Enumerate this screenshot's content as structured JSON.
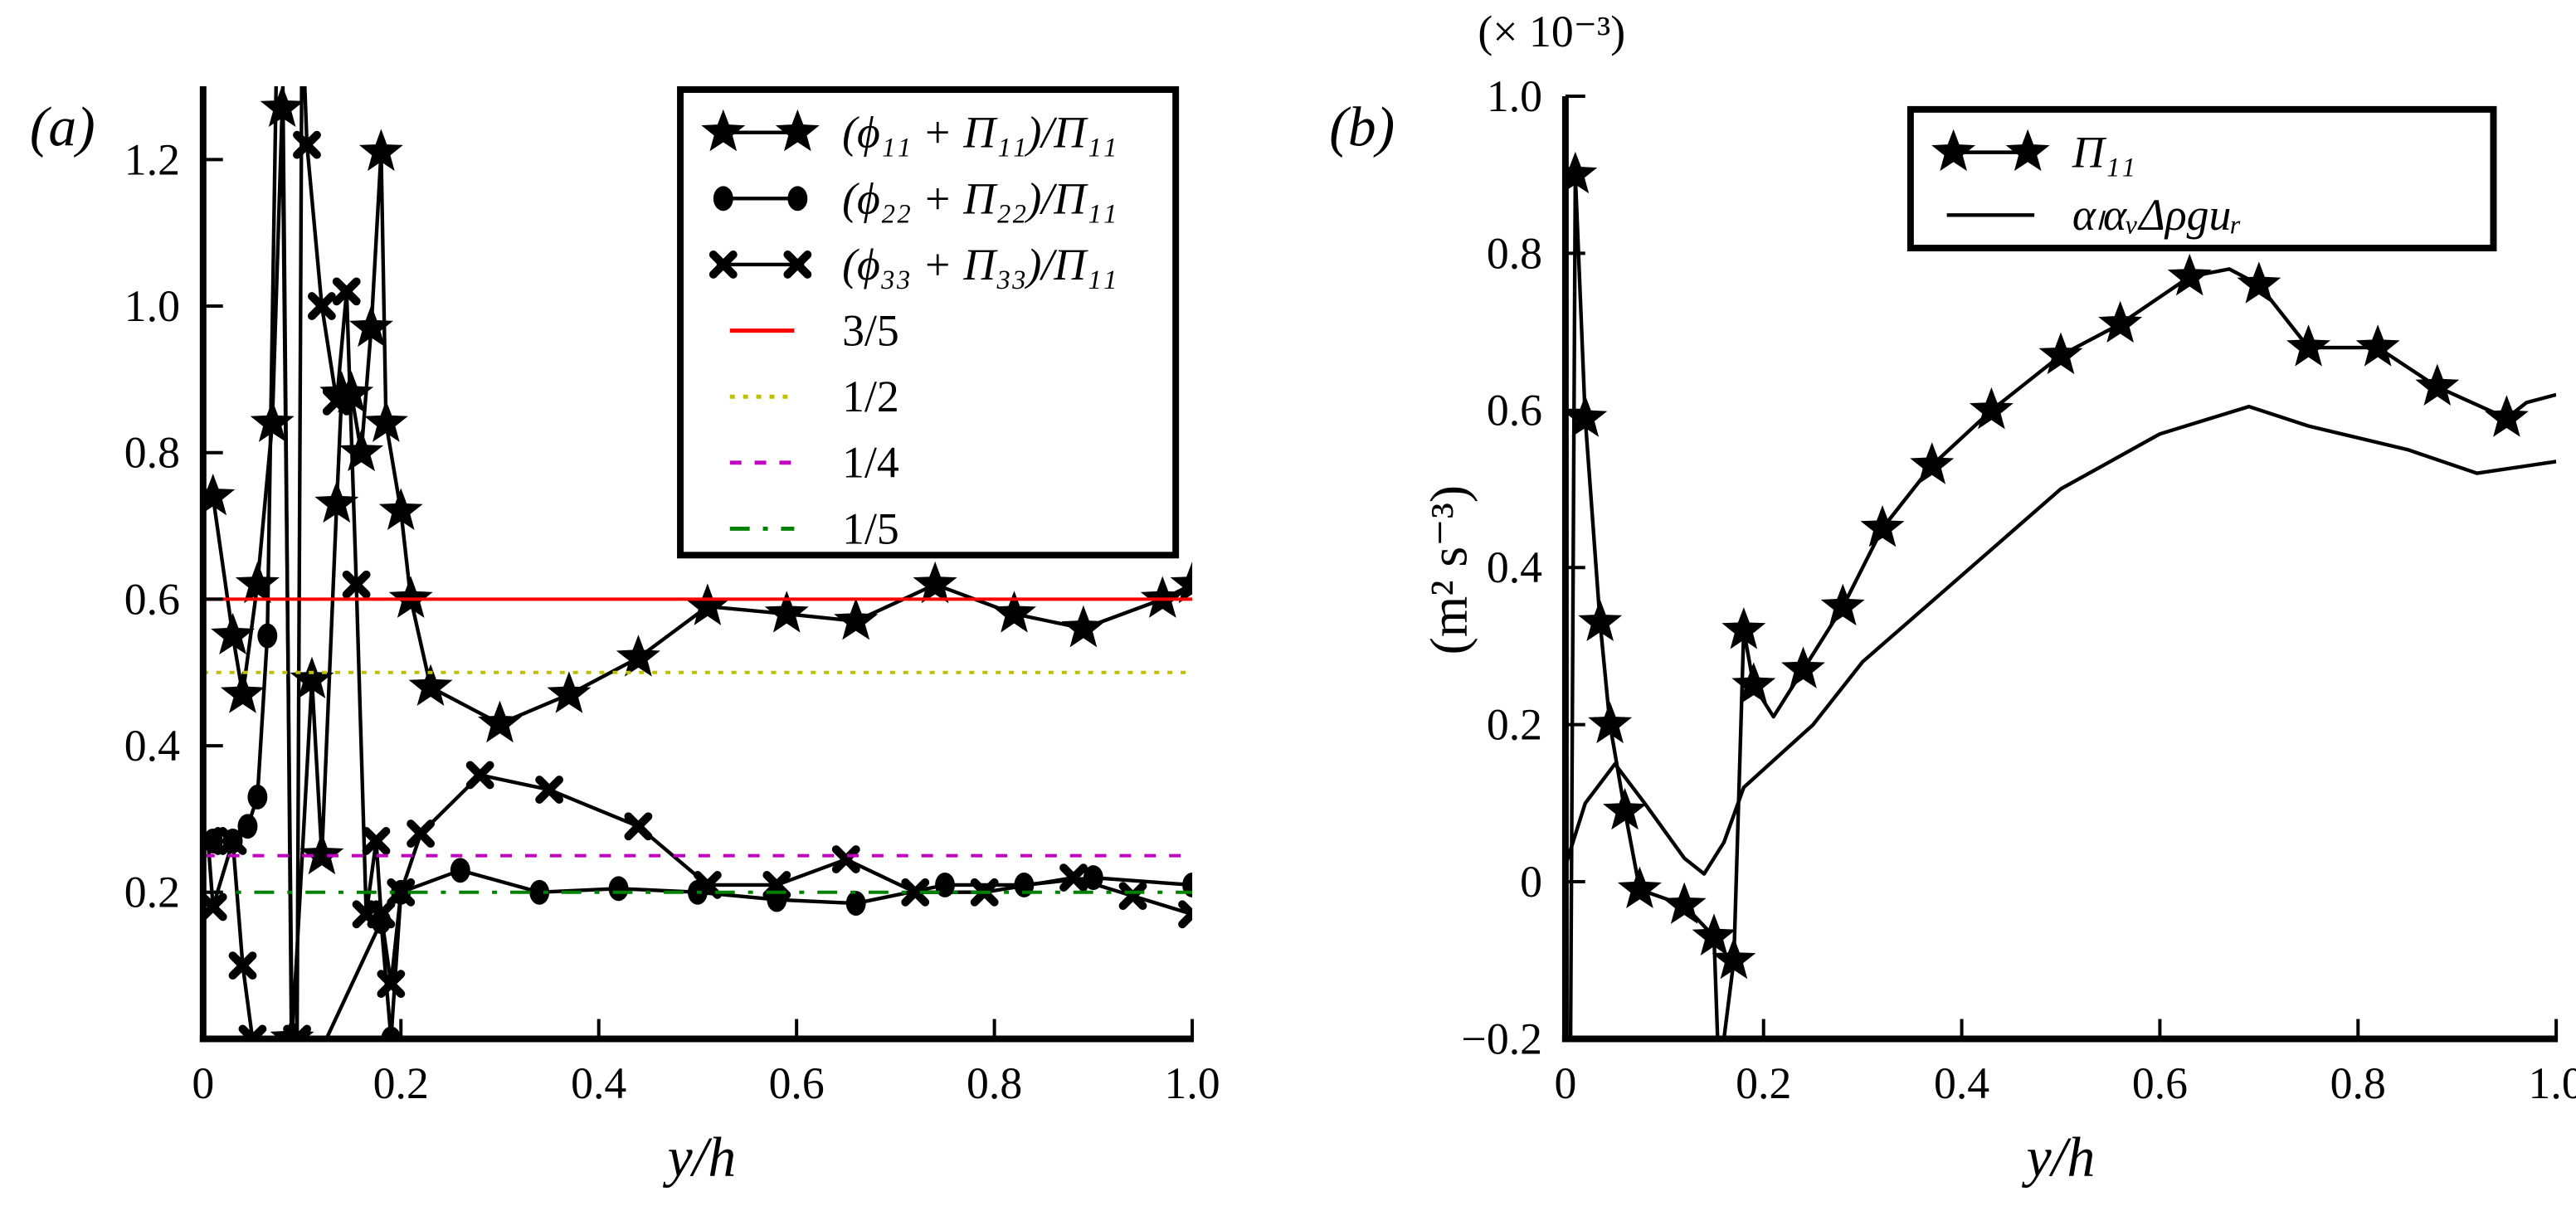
{
  "chart_data": [
    {
      "type": "line",
      "panel_label": "(a)",
      "xlabel": "y/h",
      "ylabel": "",
      "xlim": [
        0,
        1.0
      ],
      "ylim": [
        0,
        1.3
      ],
      "xticks": [
        "0",
        "0.2",
        "0.4",
        "0.6",
        "0.8",
        "1.0"
      ],
      "yticks": [
        "0.2",
        "0.4",
        "0.6",
        "0.8",
        "1.0",
        "1.2"
      ],
      "ytick_values": [
        0.2,
        0.4,
        0.6,
        0.8,
        1.0,
        1.2
      ],
      "xtick_values": [
        0,
        0.2,
        0.4,
        0.6,
        0.8,
        1.0
      ],
      "grid": false,
      "legend_position": "top-right",
      "series": [
        {
          "name": "(ϕ₁₁ + Π₁₁)/Π₁₁",
          "marker": "star",
          "color": "#000000",
          "x": [
            0.01,
            0.03,
            0.04,
            0.055,
            0.07,
            0.08,
            0.09,
            0.11,
            0.12,
            0.135,
            0.14,
            0.15,
            0.16,
            0.17,
            0.18,
            0.185,
            0.2,
            0.21,
            0.23,
            0.3,
            0.37,
            0.44,
            0.51,
            0.59,
            0.66,
            0.74,
            0.82,
            0.89,
            0.97,
            1.0
          ],
          "y": [
            0.74,
            0.55,
            0.47,
            0.62,
            0.84,
            1.27,
            0.0,
            0.49,
            0.25,
            0.73,
            0.88,
            0.88,
            0.8,
            0.97,
            1.21,
            0.84,
            0.72,
            0.6,
            0.48,
            0.43,
            0.47,
            0.52,
            0.59,
            0.58,
            0.57,
            0.62,
            0.58,
            0.56,
            0.6,
            0.62
          ]
        },
        {
          "name": "(ϕ₂₂ + Π₂₂)/Π₁₁",
          "marker": "circle",
          "color": "#000000",
          "x": [
            0.01,
            0.03,
            0.045,
            0.055,
            0.065,
            0.075,
            0.08,
            0.09,
            0.18,
            0.19,
            0.2,
            0.26,
            0.34,
            0.42,
            0.5,
            0.58,
            0.66,
            0.75,
            0.83,
            0.9,
            1.0
          ],
          "y": [
            0.27,
            0.27,
            0.29,
            0.33,
            0.55,
            1.4,
            1.4,
            -0.1,
            0.16,
            0.0,
            0.2,
            0.23,
            0.2,
            0.205,
            0.2,
            0.19,
            0.185,
            0.21,
            0.21,
            0.22,
            0.21
          ]
        },
        {
          "name": "(ϕ₃₃ + Π₃₃)/Π₁₁",
          "marker": "cross",
          "color": "#000000",
          "x": [
            0.005,
            0.01,
            0.03,
            0.04,
            0.05,
            0.06,
            0.095,
            0.1,
            0.105,
            0.12,
            0.135,
            0.145,
            0.155,
            0.165,
            0.175,
            0.18,
            0.19,
            0.2,
            0.22,
            0.28,
            0.35,
            0.44,
            0.51,
            0.58,
            0.65,
            0.72,
            0.79,
            0.88,
            0.94,
            1.0
          ],
          "y": [
            0.27,
            0.18,
            0.27,
            0.1,
            0.0,
            -0.1,
            0.0,
            1.4,
            1.22,
            1.0,
            0.87,
            1.02,
            0.62,
            0.17,
            0.27,
            0.17,
            0.075,
            0.2,
            0.28,
            0.36,
            0.34,
            0.29,
            0.21,
            0.21,
            0.245,
            0.2,
            0.2,
            0.22,
            0.195,
            0.17
          ]
        },
        {
          "name": "3/5",
          "value": 0.6,
          "style": "solid",
          "color": "#ff0000"
        },
        {
          "name": "1/2",
          "value": 0.5,
          "style": "dotted",
          "color": "#bfbf00"
        },
        {
          "name": "1/4",
          "value": 0.25,
          "style": "dashed",
          "color": "#bf00bf"
        },
        {
          "name": "1/5",
          "value": 0.2,
          "style": "dashdot",
          "color": "#008000"
        }
      ]
    },
    {
      "type": "line",
      "panel_label": "(b)",
      "xlabel": "y/h",
      "ylabel": "(m² s⁻³)",
      "multiplier": "(× 10⁻³)",
      "xlim": [
        0,
        1.0
      ],
      "ylim": [
        -0.2,
        1.0
      ],
      "xticks": [
        "0",
        "0.2",
        "0.4",
        "0.6",
        "0.8",
        "1.0"
      ],
      "xtick_values": [
        0,
        0.2,
        0.4,
        0.6,
        0.8,
        1.0
      ],
      "yticks": [
        "−0.2",
        "0",
        "0.2",
        "0.4",
        "0.6",
        "0.8",
        "1.0"
      ],
      "ytick_values": [
        -0.2,
        0,
        0.2,
        0.4,
        0.6,
        0.8,
        1.0
      ],
      "grid": false,
      "legend_position": "top-right",
      "series": [
        {
          "name": "Π₁₁",
          "marker": "star",
          "color": "#000000",
          "x": [
            0.005,
            0.01,
            0.02,
            0.035,
            0.045,
            0.06,
            0.075,
            0.12,
            0.15,
            0.155,
            0.17,
            0.18,
            0.19,
            0.21,
            0.24,
            0.28,
            0.32,
            0.37,
            0.43,
            0.5,
            0.56,
            0.63,
            0.67,
            0.7,
            0.75,
            0.82,
            0.88,
            0.95,
            0.97,
            1.0
          ],
          "y": [
            -0.25,
            0.9,
            0.59,
            0.33,
            0.2,
            0.09,
            -0.01,
            -0.03,
            -0.07,
            -0.25,
            -0.1,
            0.32,
            0.25,
            0.21,
            0.27,
            0.35,
            0.45,
            0.53,
            0.6,
            0.67,
            0.71,
            0.77,
            0.78,
            0.76,
            0.68,
            0.68,
            0.63,
            0.59,
            0.61,
            0.62
          ],
          "marked": [
            false,
            true,
            true,
            true,
            true,
            true,
            true,
            true,
            true,
            false,
            true,
            true,
            true,
            false,
            true,
            true,
            true,
            true,
            true,
            true,
            true,
            true,
            false,
            true,
            true,
            true,
            true,
            true,
            false,
            false
          ]
        },
        {
          "name": "αₗαᵥΔρguᵣ",
          "marker": "none",
          "color": "#000000",
          "x": [
            0,
            0.02,
            0.05,
            0.08,
            0.12,
            0.14,
            0.16,
            0.18,
            0.25,
            0.3,
            0.4,
            0.5,
            0.6,
            0.69,
            0.75,
            0.85,
            0.92,
            1.0
          ],
          "y": [
            0.02,
            0.1,
            0.15,
            0.1,
            0.03,
            0.01,
            0.05,
            0.12,
            0.2,
            0.28,
            0.39,
            0.5,
            0.57,
            0.605,
            0.58,
            0.55,
            0.52,
            0.535
          ]
        }
      ]
    }
  ]
}
